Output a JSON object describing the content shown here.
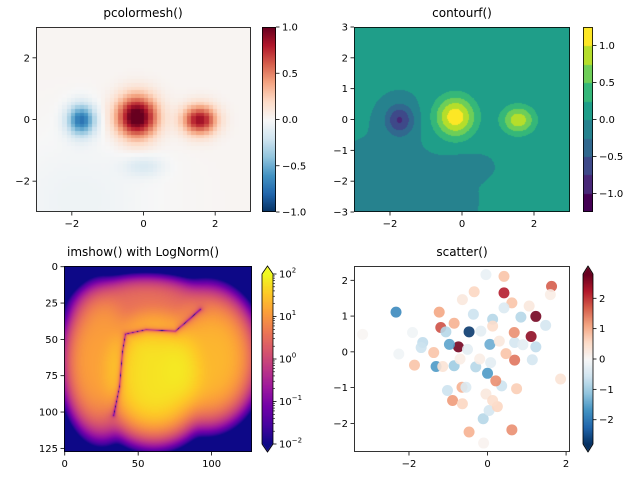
{
  "chart_data": [
    {
      "type": "heatmap",
      "title": "pcolormesh()",
      "colormap": "RdBu_r",
      "xlim": [
        -3,
        3
      ],
      "ylim": [
        -3,
        3
      ],
      "xticks": [
        -2,
        0,
        2
      ],
      "xtick_labels": [
        "−2",
        "0",
        "2"
      ],
      "yticks": [
        -2,
        0,
        2
      ],
      "ytick_labels": [
        "−2",
        "0",
        "2"
      ],
      "field": {
        "base": 0.02,
        "peaks": [
          {
            "x": -0.2,
            "y": 0.1,
            "sx": 0.5,
            "sy": 0.6,
            "amp": 1.1
          },
          {
            "x": 1.55,
            "y": 0.0,
            "sx": 0.42,
            "sy": 0.42,
            "amp": 0.85
          },
          {
            "x": -1.75,
            "y": 0.0,
            "sx": 0.35,
            "sy": 0.45,
            "amp": -0.75
          },
          {
            "x": 0.0,
            "y": -1.5,
            "sx": 0.5,
            "sy": 0.3,
            "amp": -0.15
          },
          {
            "x": -1.8,
            "y": -2.6,
            "sx": 1.8,
            "sy": 1.8,
            "amp": -0.07
          }
        ]
      },
      "colorbar": {
        "range": [
          -1,
          1
        ],
        "ticks": [
          1,
          0.5,
          0,
          -0.5,
          -1
        ],
        "tick_labels": [
          "1.0",
          "0.5",
          "0.0",
          "−0.5",
          "−1.0"
        ]
      }
    },
    {
      "type": "heatmap",
      "title": "contourf()",
      "colormap": "viridis",
      "levels": [
        -1.25,
        -1.0,
        -0.75,
        -0.5,
        -0.25,
        0,
        0.25,
        0.5,
        0.75,
        1.0,
        1.25
      ],
      "xlim": [
        -3,
        3
      ],
      "ylim": [
        -3,
        3
      ],
      "xticks": [
        -2,
        0,
        2
      ],
      "xtick_labels": [
        "−2",
        "0",
        "2"
      ],
      "yticks": [
        3,
        2,
        1,
        0,
        -1,
        -2,
        -3
      ],
      "ytick_labels": [
        "3",
        "2",
        "1",
        "0",
        "−1",
        "−2",
        "−3"
      ],
      "colorbar": {
        "range": [
          -1.25,
          1.25
        ],
        "ticks": [
          1,
          0.5,
          0,
          -0.5,
          -1
        ],
        "tick_labels": [
          "1.0",
          "0.5",
          "0.0",
          "−0.5",
          "−1.0"
        ]
      }
    },
    {
      "type": "heatmap",
      "title": "imshow() with LogNorm()",
      "colormap": "plasma",
      "norm": "log",
      "xlim": [
        -0.5,
        127.5
      ],
      "ylim": [
        127.5,
        -0.5
      ],
      "xticks": [
        0,
        50,
        100
      ],
      "xtick_labels": [
        "0",
        "50",
        "100"
      ],
      "yticks": [
        0,
        25,
        50,
        75,
        100,
        125
      ],
      "ytick_labels": [
        "0",
        "25",
        "50",
        "75",
        "100",
        "125"
      ],
      "field": {
        "blobs": [
          {
            "x": 60,
            "y": 72,
            "sx": 28,
            "sy": 33,
            "amp": 70
          },
          {
            "x": 25,
            "y": 65,
            "sx": 19,
            "sy": 36,
            "amp": 15
          },
          {
            "x": 96,
            "y": 62,
            "sx": 25,
            "sy": 33,
            "amp": 25
          },
          {
            "x": 55,
            "y": 30,
            "sx": 35,
            "sy": 17,
            "amp": 4
          }
        ],
        "zero_curve": [
          [
            33,
            102
          ],
          [
            37,
            82
          ],
          [
            39,
            58
          ],
          [
            41,
            46
          ],
          [
            55,
            43
          ],
          [
            75,
            44
          ],
          [
            82,
            38
          ],
          [
            92,
            29
          ]
        ]
      },
      "colorbar": {
        "range": [
          0.01,
          100
        ],
        "extend": "both",
        "ticks": [
          100,
          10,
          1,
          0.1,
          0.01
        ],
        "tick_labels": [
          "10",
          "10",
          "10",
          "10",
          "10"
        ],
        "tick_exponents": [
          "2",
          "1",
          "0",
          "−1",
          "−2"
        ]
      }
    },
    {
      "type": "scatter",
      "title": "scatter()",
      "colormap": "RdBu_r",
      "xlim": [
        -3.4,
        2.1
      ],
      "ylim": [
        -2.8,
        2.4
      ],
      "xticks": [
        -2,
        0,
        2
      ],
      "xtick_labels": [
        "−2",
        "0",
        "2"
      ],
      "yticks": [
        2,
        1,
        0,
        -1,
        -2
      ],
      "ytick_labels": [
        "2",
        "1",
        "0",
        "−1",
        "−2"
      ],
      "points": [
        [
          -2.33,
          1.11,
          -1.8
        ],
        [
          -1.23,
          1.11,
          1.1
        ],
        [
          -1.19,
          0.68,
          1.8
        ],
        [
          -1.06,
          0.56,
          -0.8
        ],
        [
          -0.85,
          0.8,
          1.0
        ],
        [
          -0.47,
          0.56,
          -2.7
        ],
        [
          -0.74,
          0.14,
          2.7
        ],
        [
          -0.97,
          0.21,
          -1.5
        ],
        [
          0.06,
          0.21,
          -1.4
        ],
        [
          -1.65,
          0.26,
          -0.7
        ],
        [
          -1.69,
          0.12,
          -0.6
        ],
        [
          -1.37,
          -0.02,
          0.8
        ],
        [
          -1.86,
          -0.37,
          0.8
        ],
        [
          -1.31,
          -0.41,
          -1.6
        ],
        [
          -1.14,
          -0.41,
          0.4
        ],
        [
          -0.85,
          -0.39,
          -1.0
        ],
        [
          -0.3,
          -0.42,
          -0.8
        ],
        [
          0.0,
          -0.6,
          -1.6
        ],
        [
          -0.65,
          -0.99,
          1.0
        ],
        [
          -0.55,
          -0.99,
          -0.4
        ],
        [
          -1.02,
          -1.08,
          -0.6
        ],
        [
          -0.89,
          -1.36,
          1.2
        ],
        [
          -0.64,
          -1.45,
          0.6
        ],
        [
          -0.11,
          -1.87,
          -0.8
        ],
        [
          0.04,
          -1.64,
          -0.5
        ],
        [
          0.25,
          -1.53,
          0.6
        ],
        [
          -0.47,
          -2.24,
          1.0
        ],
        [
          0.62,
          -2.18,
          1.3
        ],
        [
          0.36,
          -0.95,
          -0.6
        ],
        [
          0.21,
          -0.81,
          1.3
        ],
        [
          0.74,
          -1.03,
          0.7
        ],
        [
          0.69,
          -0.23,
          1.5
        ],
        [
          0.47,
          -0.05,
          0.8
        ],
        [
          1.14,
          -0.22,
          -0.5
        ],
        [
          1.23,
          0.14,
          -0.7
        ],
        [
          0.69,
          0.26,
          -0.5
        ],
        [
          0.68,
          0.54,
          1.3
        ],
        [
          1.11,
          0.43,
          2.5
        ],
        [
          1.23,
          0.99,
          2.7
        ],
        [
          1.48,
          0.74,
          -0.5
        ],
        [
          0.85,
          0.97,
          -0.8
        ],
        [
          0.13,
          0.91,
          -0.8
        ],
        [
          0.13,
          0.72,
          0.5
        ],
        [
          -0.36,
          1.05,
          -0.6
        ],
        [
          -0.64,
          1.46,
          0.3
        ],
        [
          -0.34,
          1.68,
          0.6
        ],
        [
          0.42,
          1.65,
          2.2
        ],
        [
          0.42,
          2.11,
          0.8
        ],
        [
          0.62,
          1.37,
          0.8
        ],
        [
          -0.04,
          2.16,
          -0.2
        ],
        [
          1.63,
          1.83,
          1.7
        ],
        [
          1.86,
          -0.76,
          0.4
        ],
        [
          1.06,
          1.28,
          0.3
        ],
        [
          0.42,
          1.23,
          -0.4
        ],
        [
          -0.17,
          0.58,
          -0.3
        ],
        [
          -0.51,
          0.07,
          -0.3
        ],
        [
          0.08,
          -0.3,
          -0.3
        ],
        [
          -0.04,
          -1.18,
          0.3
        ],
        [
          0.13,
          -1.36,
          0.5
        ],
        [
          -3.18,
          0.49,
          0.05
        ],
        [
          -1.91,
          0.54,
          -0.1
        ],
        [
          -2.26,
          -0.06,
          -0.1
        ],
        [
          0.3,
          0.3,
          0.3
        ],
        [
          -0.2,
          -0.2,
          0.2
        ],
        [
          0.9,
          0.2,
          -0.3
        ],
        [
          1.6,
          1.6,
          0.2
        ],
        [
          -0.1,
          -2.55,
          0.1
        ],
        [
          -0.7,
          -0.2,
          0.2
        ]
      ],
      "colorbar": {
        "range": [
          -2.8,
          2.8
        ],
        "extend": "both",
        "ticks": [
          2,
          1,
          0,
          -1,
          -2
        ],
        "tick_labels": [
          "2",
          "1",
          "0",
          "−1",
          "−2"
        ]
      }
    }
  ],
  "colors": {
    "RdBu_r": [
      "#053061",
      "#2166ac",
      "#4393c3",
      "#92c5de",
      "#d1e5f0",
      "#f7f7f7",
      "#fddbc7",
      "#f4a582",
      "#d6604d",
      "#b2182b",
      "#67001f"
    ],
    "viridis": [
      "#440154",
      "#482878",
      "#3e4989",
      "#31688e",
      "#26828e",
      "#1f9e89",
      "#35b779",
      "#6ece58",
      "#b5de2b",
      "#fde725"
    ],
    "plasma": [
      "#0d0887",
      "#46039f",
      "#7201a8",
      "#9c179e",
      "#bd3786",
      "#d8576b",
      "#ed7953",
      "#fb9f3a",
      "#fdca26",
      "#f0f921"
    ]
  }
}
